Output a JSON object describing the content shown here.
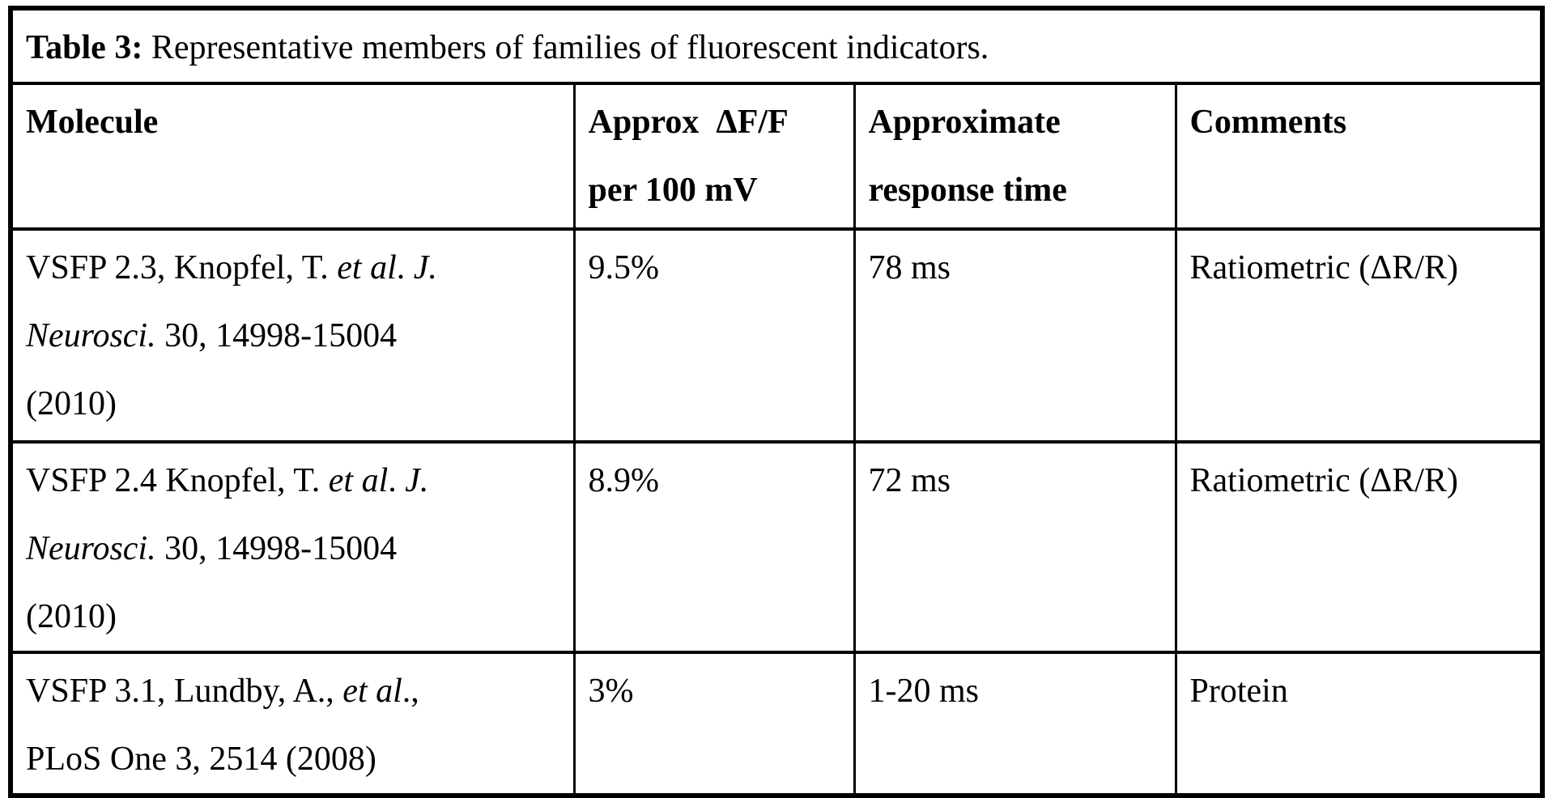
{
  "title": {
    "label": "Table 3:",
    "text": " Representative members of families of fluorescent indicators."
  },
  "header": {
    "molecule": [
      "Molecule"
    ],
    "df_f": [
      "Approx  ΔF/F",
      "per 100 mV"
    ],
    "response": [
      "Approximate",
      "response time"
    ],
    "comments": [
      "Comments"
    ]
  },
  "rows": [
    {
      "molecule_lines": [
        [
          {
            "t": "VSFP 2.3, Knopfel, T. ",
            "i": false
          },
          {
            "t": "et al",
            "i": true
          },
          {
            "t": ". ",
            "i": false
          },
          {
            "t": "J.",
            "i": true
          }
        ],
        [
          {
            "t": "Neurosci.",
            "i": true
          },
          {
            "t": " 30, 14998-15004",
            "i": false
          }
        ],
        [
          {
            "t": "(2010)",
            "i": false
          }
        ]
      ],
      "df_f": "9.5%",
      "response": "78 ms",
      "comments": "Ratiometric (ΔR/R)"
    },
    {
      "molecule_lines": [
        [
          {
            "t": "VSFP 2.4 Knopfel, T. ",
            "i": false
          },
          {
            "t": "et al",
            "i": true
          },
          {
            "t": ". ",
            "i": false
          },
          {
            "t": "J.",
            "i": true
          }
        ],
        [
          {
            "t": "Neurosci.",
            "i": true
          },
          {
            "t": " 30, 14998-15004",
            "i": false
          }
        ],
        [
          {
            "t": "(2010)",
            "i": false
          }
        ]
      ],
      "df_f": "8.9%",
      "response": "72 ms",
      "comments": "Ratiometric (ΔR/R)"
    },
    {
      "molecule_lines": [
        [
          {
            "t": "VSFP 3.1, Lundby, A., ",
            "i": false
          },
          {
            "t": "et al",
            "i": true
          },
          {
            "t": ".,",
            "i": false
          }
        ],
        [
          {
            "t": "PLoS One 3, 2514 (2008)",
            "i": false
          }
        ]
      ],
      "df_f": "3%",
      "response": "1-20 ms",
      "comments": "Protein"
    }
  ],
  "colors": {
    "text": "#000000",
    "border": "#000000",
    "background": "#ffffff"
  }
}
